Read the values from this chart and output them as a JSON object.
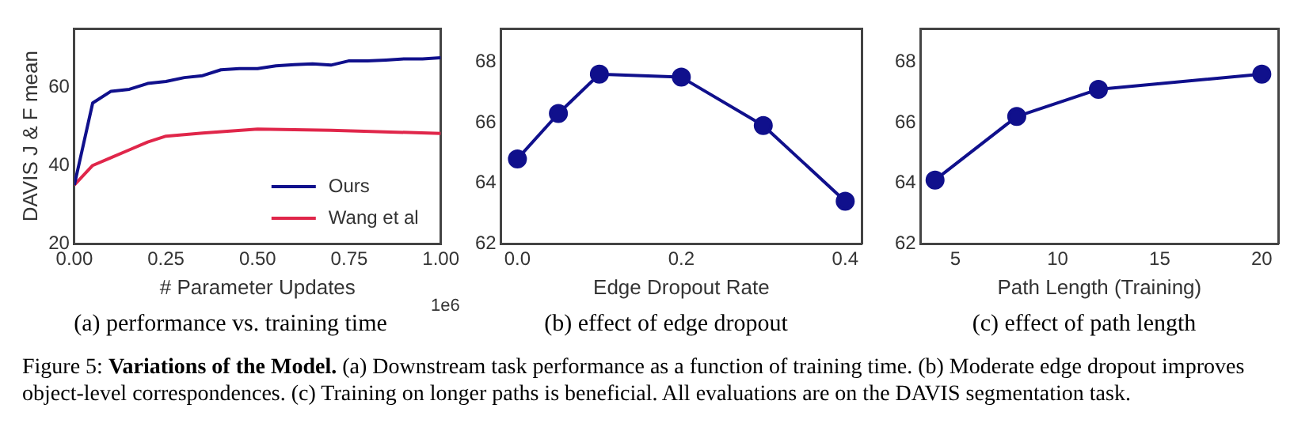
{
  "chart_data": [
    {
      "type": "line",
      "title": "(a) performance vs. training time",
      "xlabel": "# Parameter Updates",
      "ylabel": "DAVIS J & F mean",
      "annotations": [
        "1e6"
      ],
      "xlim": [
        0,
        1.0
      ],
      "xticks": [
        {
          "value": 0,
          "label": "0.00"
        },
        {
          "value": 0.25,
          "label": "0.25"
        },
        {
          "value": 0.5,
          "label": "0.50"
        },
        {
          "value": 0.75,
          "label": "0.75"
        },
        {
          "value": 1.0,
          "label": "1.00"
        }
      ],
      "ylim": [
        20,
        75
      ],
      "yticks": [
        20,
        40,
        60
      ],
      "grid": false,
      "legend": "bottom right",
      "marker": "none",
      "line_style": "solid",
      "series": [
        {
          "name": "Ours",
          "color": "#10108c",
          "x": [
            0,
            0.05,
            0.1,
            0.15,
            0.2,
            0.25,
            0.3,
            0.35,
            0.4,
            0.45,
            0.5,
            0.55,
            0.6,
            0.65,
            0.7,
            0.75,
            0.8,
            0.85,
            0.9,
            0.95,
            1.0
          ],
          "values": [
            35,
            56,
            59,
            59.5,
            61,
            61.5,
            62.5,
            63,
            64.5,
            64.8,
            64.8,
            65.5,
            65.8,
            66,
            65.7,
            66.8,
            66.8,
            67,
            67.3,
            67.3,
            67.6
          ]
        },
        {
          "name": "Wang et al",
          "color": "#e0264a",
          "x": [
            0,
            0.05,
            0.1,
            0.15,
            0.2,
            0.25,
            0.35,
            0.5,
            0.7,
            1.0
          ],
          "values": [
            35,
            40,
            42,
            44,
            46,
            47.5,
            48.3,
            49.3,
            49,
            48.2
          ]
        }
      ]
    },
    {
      "type": "line",
      "title": "(b) effect of edge dropout",
      "xlabel": "Edge Dropout Rate",
      "xlim": [
        -0.02,
        0.42
      ],
      "xticks": [
        {
          "value": 0,
          "label": "0.0"
        },
        {
          "value": 0.2,
          "label": "0.2"
        },
        {
          "value": 0.4,
          "label": "0.4"
        }
      ],
      "ylim": [
        62,
        69.1
      ],
      "yticks": [
        62,
        64,
        66,
        68
      ],
      "grid": false,
      "marker": "circle",
      "line_style": "solid",
      "series": [
        {
          "color": "#10108c",
          "x": [
            0,
            0.05,
            0.1,
            0.2,
            0.3,
            0.4
          ],
          "values": [
            64.8,
            66.3,
            67.6,
            67.5,
            65.9,
            63.4
          ]
        }
      ]
    },
    {
      "type": "line",
      "title": "(c) effect of path length",
      "xlabel": "Path Length (Training)",
      "xlim": [
        3.3,
        20.8
      ],
      "xticks": [
        5,
        10,
        15,
        20
      ],
      "ylim": [
        62,
        69.1
      ],
      "yticks": [
        62,
        64,
        66,
        68
      ],
      "grid": false,
      "marker": "circle",
      "line_style": "solid",
      "annotations": [
        "Figure 5: ",
        "Variations of the Model.",
        " (a) Downstream task performance as a function of training time. (b) Moderate edge dropout improves object-level correspondences. (c) Training on longer paths is beneficial. All evaluations are on the DAVIS segmentation task."
      ],
      "series": [
        {
          "color": "#10108c",
          "x": [
            4,
            8,
            12,
            20
          ],
          "values": [
            64.1,
            66.2,
            67.1,
            67.6
          ]
        }
      ]
    }
  ]
}
